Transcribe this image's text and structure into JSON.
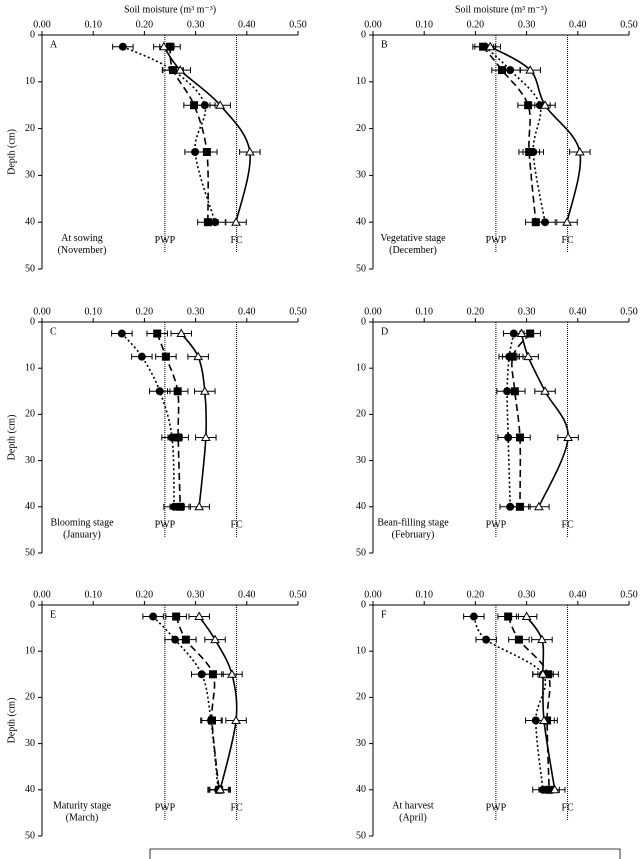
{
  "chart_data": [
    {
      "type": "line",
      "panel_label": "A",
      "xlabel": "Soil moisture (m³ m⁻³)",
      "ylabel": "Depth (cm)",
      "annotation": [
        "At sowing",
        "(November)"
      ],
      "xlim": [
        0,
        0.5
      ],
      "xticks": [
        {
          "value": 0,
          "label": "0.00"
        },
        {
          "value": 0.1,
          "label": "0.10"
        },
        {
          "value": 0.2,
          "label": "0.20"
        },
        {
          "value": 0.3,
          "label": "0.30"
        },
        {
          "value": 0.4,
          "label": "0.40"
        },
        {
          "value": 0.5,
          "label": "0.50"
        }
      ],
      "ylim": [
        0,
        50
      ],
      "yticks": [
        0,
        10,
        20,
        30,
        40,
        50
      ],
      "y": [
        2.5,
        7.5,
        15,
        25,
        40
      ],
      "reference_lines": [
        {
          "label": "PWP",
          "value": 0.24
        },
        {
          "label": "FC",
          "value": 0.38
        }
      ],
      "series": [
        {
          "marker": "circle",
          "linestyle": "dotted",
          "color": "#000000",
          "values": [
            0.158,
            0.255,
            0.318,
            0.299,
            0.338
          ],
          "errors": [
            0.02,
            0.02,
            0.02,
            0.02,
            0.02
          ]
        },
        {
          "marker": "square",
          "linestyle": "dashed",
          "color": "#000000",
          "values": [
            0.25,
            0.256,
            0.297,
            0.322,
            0.324
          ],
          "errors": [
            0.02,
            0.02,
            0.02,
            0.02,
            0.02
          ]
        },
        {
          "marker": "triangle",
          "linestyle": "solid",
          "color": "#000000",
          "values": [
            0.238,
            0.27,
            0.348,
            0.406,
            0.379
          ],
          "errors": [
            0.02,
            0.02,
            0.02,
            0.02,
            0.02
          ]
        }
      ]
    },
    {
      "type": "line",
      "panel_label": "B",
      "xlabel": "Soil moisture (m³ m⁻³)",
      "annotation": [
        "Vegetative stage",
        "(December)"
      ],
      "xlim": [
        0,
        0.5
      ],
      "xticks": [
        {
          "value": 0,
          "label": "0.00"
        },
        {
          "value": 0.1,
          "label": "0.10"
        },
        {
          "value": 0.2,
          "label": "0.20"
        },
        {
          "value": 0.3,
          "label": "0.30"
        },
        {
          "value": 0.4,
          "label": "0.40"
        },
        {
          "value": 0.5,
          "label": "0.50"
        }
      ],
      "ylim": [
        0,
        50
      ],
      "yticks": [
        0,
        10,
        20,
        30,
        40,
        50
      ],
      "y": [
        2.5,
        7.5,
        15,
        25,
        40
      ],
      "reference_lines": [
        {
          "label": "PWP",
          "value": 0.24
        },
        {
          "label": "FC",
          "value": 0.38
        }
      ],
      "series": [
        {
          "marker": "circle",
          "linestyle": "dotted",
          "color": "#000000",
          "values": [
            0.219,
            0.268,
            0.326,
            0.313,
            0.336
          ],
          "errors": [
            0.02,
            0.02,
            0.02,
            0.02,
            0.02
          ]
        },
        {
          "marker": "square",
          "linestyle": "dashed",
          "color": "#000000",
          "values": [
            0.215,
            0.252,
            0.303,
            0.305,
            0.318
          ],
          "errors": [
            0.02,
            0.02,
            0.02,
            0.02,
            0.02
          ]
        },
        {
          "marker": "triangle",
          "linestyle": "solid",
          "color": "#000000",
          "values": [
            0.229,
            0.307,
            0.336,
            0.404,
            0.379
          ],
          "errors": [
            0.02,
            0.02,
            0.02,
            0.02,
            0.02
          ]
        }
      ]
    },
    {
      "type": "line",
      "panel_label": "C",
      "ylabel": "Depth (cm)",
      "annotation": [
        "Blooming stage",
        "(January)"
      ],
      "xlim": [
        0,
        0.5
      ],
      "xticks": [
        {
          "value": 0,
          "label": "0.00"
        },
        {
          "value": 0.1,
          "label": "0.10"
        },
        {
          "value": 0.2,
          "label": "0.20"
        },
        {
          "value": 0.3,
          "label": "0.30"
        },
        {
          "value": 0.4,
          "label": "0.40"
        },
        {
          "value": 0.5,
          "label": "0.50"
        }
      ],
      "ylim": [
        0,
        50
      ],
      "yticks": [
        0,
        10,
        20,
        30,
        40,
        50
      ],
      "y": [
        2.5,
        7.5,
        15,
        25,
        40
      ],
      "reference_lines": [
        {
          "label": "PWP",
          "value": 0.24
        },
        {
          "label": "FC",
          "value": 0.38
        }
      ],
      "series": [
        {
          "marker": "circle",
          "linestyle": "dotted",
          "color": "#000000",
          "values": [
            0.156,
            0.195,
            0.23,
            0.254,
            0.258
          ],
          "errors": [
            0.02,
            0.02,
            0.02,
            0.02,
            0.02
          ]
        },
        {
          "marker": "square",
          "linestyle": "dashed",
          "color": "#000000",
          "values": [
            0.225,
            0.242,
            0.265,
            0.266,
            0.27
          ],
          "errors": [
            0.02,
            0.02,
            0.02,
            0.02,
            0.02
          ]
        },
        {
          "marker": "triangle",
          "linestyle": "solid",
          "color": "#000000",
          "values": [
            0.272,
            0.305,
            0.318,
            0.32,
            0.307
          ],
          "errors": [
            0.02,
            0.02,
            0.02,
            0.02,
            0.02
          ]
        }
      ]
    },
    {
      "type": "line",
      "panel_label": "D",
      "annotation": [
        "Bean-filling stage",
        "(February)"
      ],
      "xlim": [
        0,
        0.5
      ],
      "xticks": [
        {
          "value": 0,
          "label": "0.00"
        },
        {
          "value": 0.1,
          "label": "0.10"
        },
        {
          "value": 0.2,
          "label": "0.20"
        },
        {
          "value": 0.3,
          "label": "0.30"
        },
        {
          "value": 0.4,
          "label": "0.40"
        },
        {
          "value": 0.5,
          "label": "0.50"
        }
      ],
      "ylim": [
        0,
        50
      ],
      "yticks": [
        0,
        10,
        20,
        30,
        40,
        50
      ],
      "y": [
        2.5,
        7.5,
        15,
        25,
        40
      ],
      "reference_lines": [
        {
          "label": "PWP",
          "value": 0.24
        },
        {
          "label": "FC",
          "value": 0.38
        }
      ],
      "series": [
        {
          "marker": "circle",
          "linestyle": "dotted",
          "color": "#000000",
          "values": [
            0.275,
            0.266,
            0.262,
            0.264,
            0.268
          ],
          "errors": [
            0.02,
            0.02,
            0.02,
            0.02,
            0.02
          ]
        },
        {
          "marker": "square",
          "linestyle": "dashed",
          "color": "#000000",
          "values": [
            0.307,
            0.273,
            0.277,
            0.287,
            0.287
          ],
          "errors": [
            0.02,
            0.02,
            0.02,
            0.02,
            0.02
          ]
        },
        {
          "marker": "triangle",
          "linestyle": "solid",
          "color": "#000000",
          "values": [
            0.29,
            0.303,
            0.336,
            0.381,
            0.324
          ],
          "errors": [
            0.02,
            0.02,
            0.02,
            0.02,
            0.02
          ]
        }
      ]
    },
    {
      "type": "line",
      "panel_label": "E",
      "ylabel": "Depth (cm)",
      "annotation": [
        "Maturity stage",
        "(March)"
      ],
      "xlim": [
        0,
        0.5
      ],
      "xticks": [
        {
          "value": 0,
          "label": "0.00"
        },
        {
          "value": 0.1,
          "label": "0.10"
        },
        {
          "value": 0.2,
          "label": "0.20"
        },
        {
          "value": 0.3,
          "label": "0.30"
        },
        {
          "value": 0.4,
          "label": "0.40"
        },
        {
          "value": 0.5,
          "label": "0.50"
        }
      ],
      "ylim": [
        0,
        50
      ],
      "yticks": [
        0,
        10,
        20,
        30,
        40,
        50
      ],
      "y": [
        2.5,
        7.5,
        15,
        25,
        40
      ],
      "reference_lines": [
        {
          "label": "PWP",
          "value": 0.24
        },
        {
          "label": "FC",
          "value": 0.38
        }
      ],
      "series": [
        {
          "marker": "circle",
          "linestyle": "dotted",
          "color": "#000000",
          "values": [
            0.217,
            0.26,
            0.312,
            0.33,
            0.344
          ],
          "errors": [
            0.02,
            0.02,
            0.02,
            0.02,
            0.02
          ]
        },
        {
          "marker": "square",
          "linestyle": "dashed",
          "color": "#000000",
          "values": [
            0.262,
            0.281,
            0.334,
            0.332,
            0.346
          ],
          "errors": [
            0.02,
            0.02,
            0.02,
            0.02,
            0.02
          ]
        },
        {
          "marker": "triangle",
          "linestyle": "solid",
          "color": "#000000",
          "values": [
            0.307,
            0.338,
            0.371,
            0.379,
            0.348
          ],
          "errors": [
            0.02,
            0.02,
            0.02,
            0.02,
            0.02
          ]
        }
      ]
    },
    {
      "type": "line",
      "panel_label": "F",
      "annotation": [
        "At harvest",
        "(April)"
      ],
      "xlim": [
        0,
        0.5
      ],
      "xticks": [
        {
          "value": 0,
          "label": "0.00"
        },
        {
          "value": 0.1,
          "label": "0.10"
        },
        {
          "value": 0.2,
          "label": "0.20"
        },
        {
          "value": 0.3,
          "label": "0.30"
        },
        {
          "value": 0.4,
          "label": "0.40"
        },
        {
          "value": 0.5,
          "label": "0.50"
        }
      ],
      "ylim": [
        0,
        50
      ],
      "yticks": [
        0,
        10,
        20,
        30,
        40,
        50
      ],
      "y": [
        2.5,
        7.5,
        15,
        25,
        40
      ],
      "reference_lines": [
        {
          "label": "PWP",
          "value": 0.24
        },
        {
          "label": "FC",
          "value": 0.38
        }
      ],
      "series": [
        {
          "marker": "circle",
          "linestyle": "dotted",
          "color": "#000000",
          "values": [
            0.197,
            0.221,
            0.332,
            0.318,
            0.332
          ],
          "errors": [
            0.02,
            0.02,
            0.02,
            0.02,
            0.02
          ]
        },
        {
          "marker": "square",
          "linestyle": "dashed",
          "color": "#000000",
          "values": [
            0.264,
            0.285,
            0.342,
            0.34,
            0.344
          ],
          "errors": [
            0.02,
            0.02,
            0.02,
            0.02,
            0.02
          ]
        },
        {
          "marker": "triangle",
          "linestyle": "solid",
          "color": "#000000",
          "values": [
            0.3,
            0.33,
            0.332,
            0.334,
            0.355
          ],
          "errors": [
            0.02,
            0.02,
            0.02,
            0.02,
            0.02
          ]
        }
      ]
    }
  ]
}
